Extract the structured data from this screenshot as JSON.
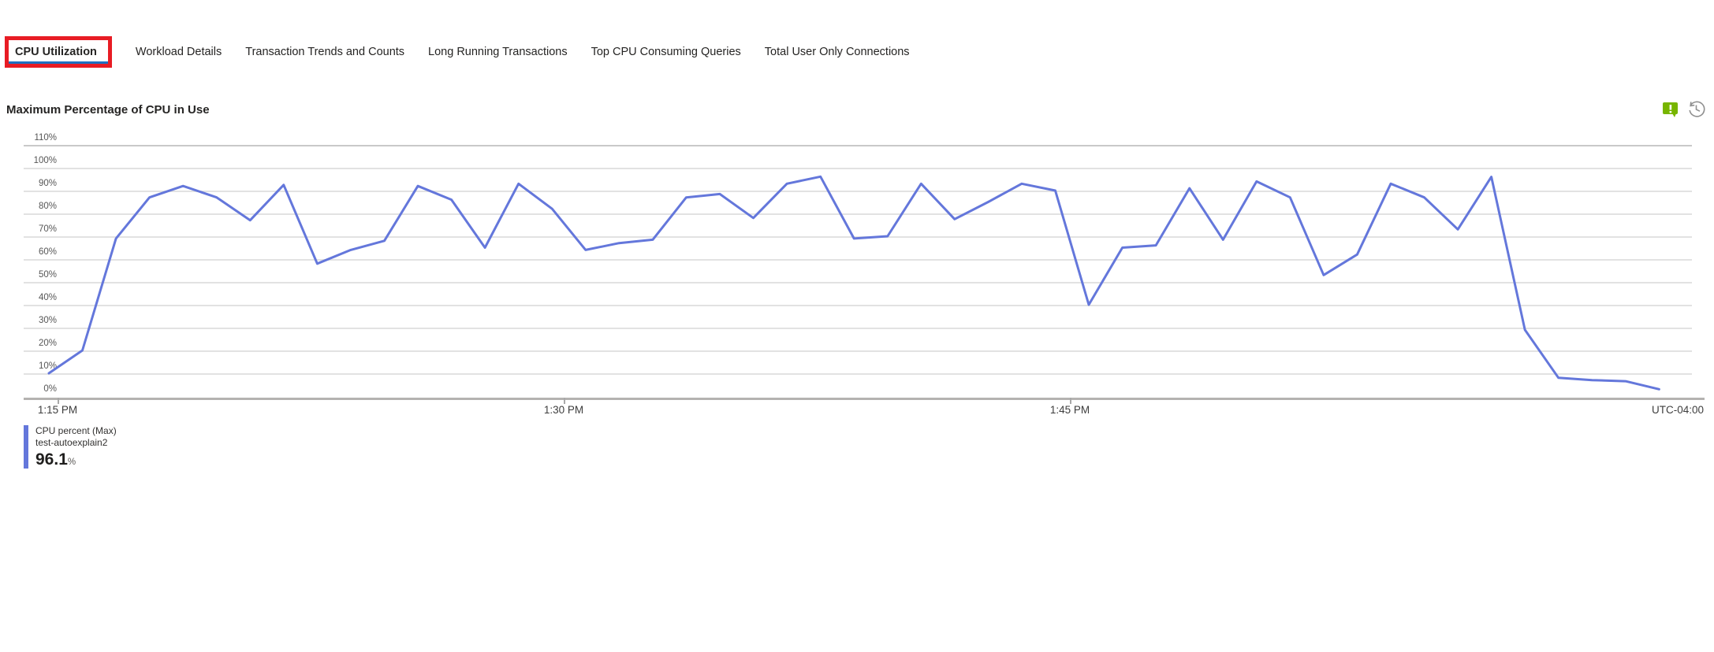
{
  "tabs": {
    "items": [
      {
        "label": "CPU Utilization",
        "selected": true
      },
      {
        "label": "Workload Details",
        "selected": false
      },
      {
        "label": "Transaction Trends and Counts",
        "selected": false
      },
      {
        "label": "Long Running Transactions",
        "selected": false
      },
      {
        "label": "Top CPU Consuming Queries",
        "selected": false
      },
      {
        "label": "Total User Only Connections",
        "selected": false
      }
    ]
  },
  "annotation": {
    "type": "highlight-box",
    "target": "CPU Utilization",
    "color": "#e81c24"
  },
  "chart": {
    "title": "Maximum Percentage of CPU in Use",
    "legend": {
      "metric": "CPU percent (Max)",
      "resource": "test-autoexplain2",
      "value": "96.1",
      "unit": "%"
    },
    "timezone_label": "UTC-04:00"
  },
  "chart_data": {
    "type": "line",
    "title": "Maximum Percentage of CPU in Use",
    "series": [
      {
        "name": "CPU percent (Max)",
        "resource": "test-autoexplain2",
        "color": "#6477db",
        "max_value": 96.1,
        "minutes_per_point": 1,
        "values": [
          10,
          20,
          69,
          87,
          92,
          87,
          77,
          92.5,
          58,
          64,
          68,
          92,
          86,
          65,
          93,
          82,
          64,
          67,
          68.5,
          87,
          88.5,
          78,
          93,
          96.1,
          69,
          70,
          93,
          77.5,
          85,
          93,
          90,
          40,
          65,
          66,
          91,
          68.5,
          94,
          87,
          53,
          62,
          93,
          87,
          73,
          96,
          29,
          8,
          7,
          6.5,
          3
        ]
      }
    ],
    "x_axis": {
      "tick_labels": [
        "1:15 PM",
        "1:30 PM",
        "1:45 PM"
      ],
      "timezone_label": "UTC-04:00"
    },
    "y_axis": {
      "tick_labels": [
        "110%",
        "100%",
        "90%",
        "80%",
        "70%",
        "60%",
        "50%",
        "40%",
        "30%",
        "20%",
        "10%",
        "0%"
      ],
      "min": 0,
      "max": 110,
      "grid": true
    },
    "legend_position": "bottom-left"
  },
  "icons": {
    "feedback": "feedback-icon",
    "history": "history-icon",
    "feedback_color": "#77b500",
    "history_color": "#8f8f8f"
  },
  "colors": {
    "accent_underline": "#1f6fc0",
    "highlight_red": "#e81c24",
    "line_blue": "#6477db"
  }
}
